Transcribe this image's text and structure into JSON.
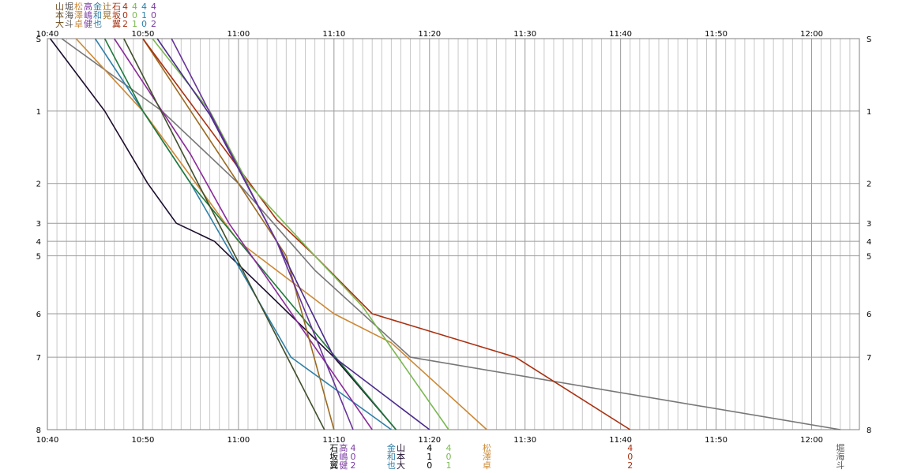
{
  "chart_data": {
    "type": "line",
    "x_axis": {
      "kind": "time",
      "min": "10:40",
      "max": "12:05",
      "tick_labels": [
        "10:40",
        "10:50",
        "11:00",
        "11:10",
        "11:20",
        "11:30",
        "11:40",
        "11:50",
        "12:00"
      ],
      "minor_grid_minutes": 1
    },
    "y_axis": {
      "kind": "station",
      "tick_labels": [
        "S",
        "1",
        "2",
        "3",
        "4",
        "5",
        "6",
        "7",
        "8"
      ],
      "station_km": [
        0,
        1,
        2,
        2.55,
        2.8,
        3.0,
        3.8,
        4.4,
        5.4
      ],
      "reversed": true,
      "repeated_on_right": true
    },
    "grid": true,
    "legend": {
      "rows": [
        {
          "names": [
            "山",
            "堀",
            "松",
            "高",
            "金",
            "辻",
            "石"
          ],
          "values": [
            "4",
            "4",
            "4",
            "4"
          ]
        },
        {
          "names": [
            "本",
            "海",
            "澤",
            "嶋",
            "和",
            "晃",
            "坂"
          ],
          "values": [
            "0",
            "0",
            "1",
            "0"
          ]
        },
        {
          "names": [
            "大",
            "斗",
            "卓",
            "健",
            "也",
            "",
            "翼"
          ],
          "values": [
            "2",
            "1",
            "0",
            "2"
          ]
        }
      ]
    },
    "series": [
      {
        "color": "#1c0c2c",
        "start": "10:40.3",
        "points": [
          [
            "10:40.3",
            0
          ],
          [
            "10:46",
            1
          ],
          [
            "10:50.5",
            2
          ],
          [
            "10:53.5",
            2.55
          ],
          [
            "10:57.5",
            2.8
          ],
          [
            "11:10",
            4.4
          ],
          [
            "11:16.5",
            5.4
          ]
        ]
      },
      {
        "color": "#777777",
        "start": "10:41.5",
        "points": [
          [
            "10:41.5",
            0
          ],
          [
            "10:52",
            1
          ],
          [
            "11:00",
            2
          ],
          [
            "11:08",
            3.2
          ],
          [
            "11:18",
            4.4
          ],
          [
            "12:03",
            5.4
          ]
        ]
      },
      {
        "color": "#cc8833",
        "start": "10:43",
        "points": [
          [
            "10:43",
            0
          ],
          [
            "10:50",
            1
          ],
          [
            "11:00",
            2.8
          ],
          [
            "11:10",
            3.8
          ],
          [
            "11:16",
            4.2
          ],
          [
            "11:26",
            5.4
          ]
        ]
      },
      {
        "color": "#2f7fa8",
        "start": "10:45",
        "points": [
          [
            "10:45",
            0
          ],
          [
            "10:50",
            1
          ],
          [
            "10:55",
            2
          ],
          [
            "11:05.5",
            4.4
          ],
          [
            "11:16",
            5.4
          ]
        ]
      },
      {
        "color": "#1e7a3a",
        "start": "10:46",
        "points": [
          [
            "10:46",
            0
          ],
          [
            "10:50",
            1
          ],
          [
            "10:55",
            2
          ],
          [
            "11:16.5",
            5.4
          ]
        ]
      },
      {
        "color": "#8a2a9a",
        "start": "10:47",
        "points": [
          [
            "10:47",
            0
          ],
          [
            "10:55",
            1.6
          ],
          [
            "10:59",
            2.55
          ],
          [
            "11:14",
            5.4
          ]
        ]
      },
      {
        "color": "#3f4f2a",
        "start": "10:48",
        "points": [
          [
            "10:48",
            0
          ],
          [
            "11:09",
            5.4
          ]
        ]
      },
      {
        "color": "#9a6a20",
        "start": "10:50",
        "points": [
          [
            "10:50",
            0
          ],
          [
            "11:05",
            3
          ],
          [
            "11:10",
            5.4
          ]
        ]
      },
      {
        "color": "#a83010",
        "start": "10:50",
        "points": [
          [
            "10:50",
            0
          ],
          [
            "11:04",
            2.5
          ],
          [
            "11:08",
            3.0
          ],
          [
            "11:14",
            3.8
          ],
          [
            "11:29",
            4.4
          ],
          [
            "11:41",
            5.4
          ]
        ]
      },
      {
        "color": "#7ab850",
        "start": "10:51",
        "points": [
          [
            "10:51",
            0
          ],
          [
            "10:57",
            1
          ],
          [
            "11:01",
            2
          ],
          [
            "11:08",
            3.0
          ],
          [
            "11:13",
            3.7
          ],
          [
            "11:22",
            5.4
          ]
        ]
      },
      {
        "color": "#4a2a8a",
        "start": "10:51.5",
        "points": [
          [
            "10:51.5",
            0
          ],
          [
            "10:57",
            1.05
          ],
          [
            "11:04",
            2.8
          ],
          [
            "11:10",
            4.4
          ],
          [
            "11:20",
            5.4
          ]
        ]
      },
      {
        "color": "#663399",
        "start": "10:53",
        "points": [
          [
            "10:53",
            0
          ],
          [
            "11:04",
            2.8
          ],
          [
            "11:12",
            5.4
          ]
        ]
      }
    ],
    "arrivals": [
      {
        "time": "11:10",
        "names": [
          "石",
          "坂",
          "翼"
        ],
        "color": "#000000"
      },
      {
        "time": "11:11",
        "names": [
          "高",
          "嶋",
          "健"
        ],
        "color": "#7a3aa0"
      },
      {
        "time": "11:12",
        "names": [
          "4",
          "0",
          "2"
        ],
        "color": "#7a3aa0"
      },
      {
        "time": "11:16",
        "names": [
          "金",
          "和",
          "也"
        ],
        "color": "#2f7fa8"
      },
      {
        "time": "11:17",
        "names": [
          "山",
          "本",
          "大"
        ],
        "color": "#1c0c2c"
      },
      {
        "time": "11:20",
        "names": [
          "4",
          "1",
          "0"
        ],
        "color": "#000000"
      },
      {
        "time": "11:22",
        "names": [
          "4",
          "0",
          "1"
        ],
        "color": "#7ab850"
      },
      {
        "time": "11:26",
        "names": [
          "松",
          "澤",
          "卓"
        ],
        "color": "#cc8833"
      },
      {
        "time": "11:41",
        "names": [
          "4",
          "0",
          "2"
        ],
        "color": "#a83010"
      },
      {
        "time": "12:03",
        "names": [
          "堀",
          "海",
          "斗"
        ],
        "color": "#555555"
      }
    ]
  }
}
